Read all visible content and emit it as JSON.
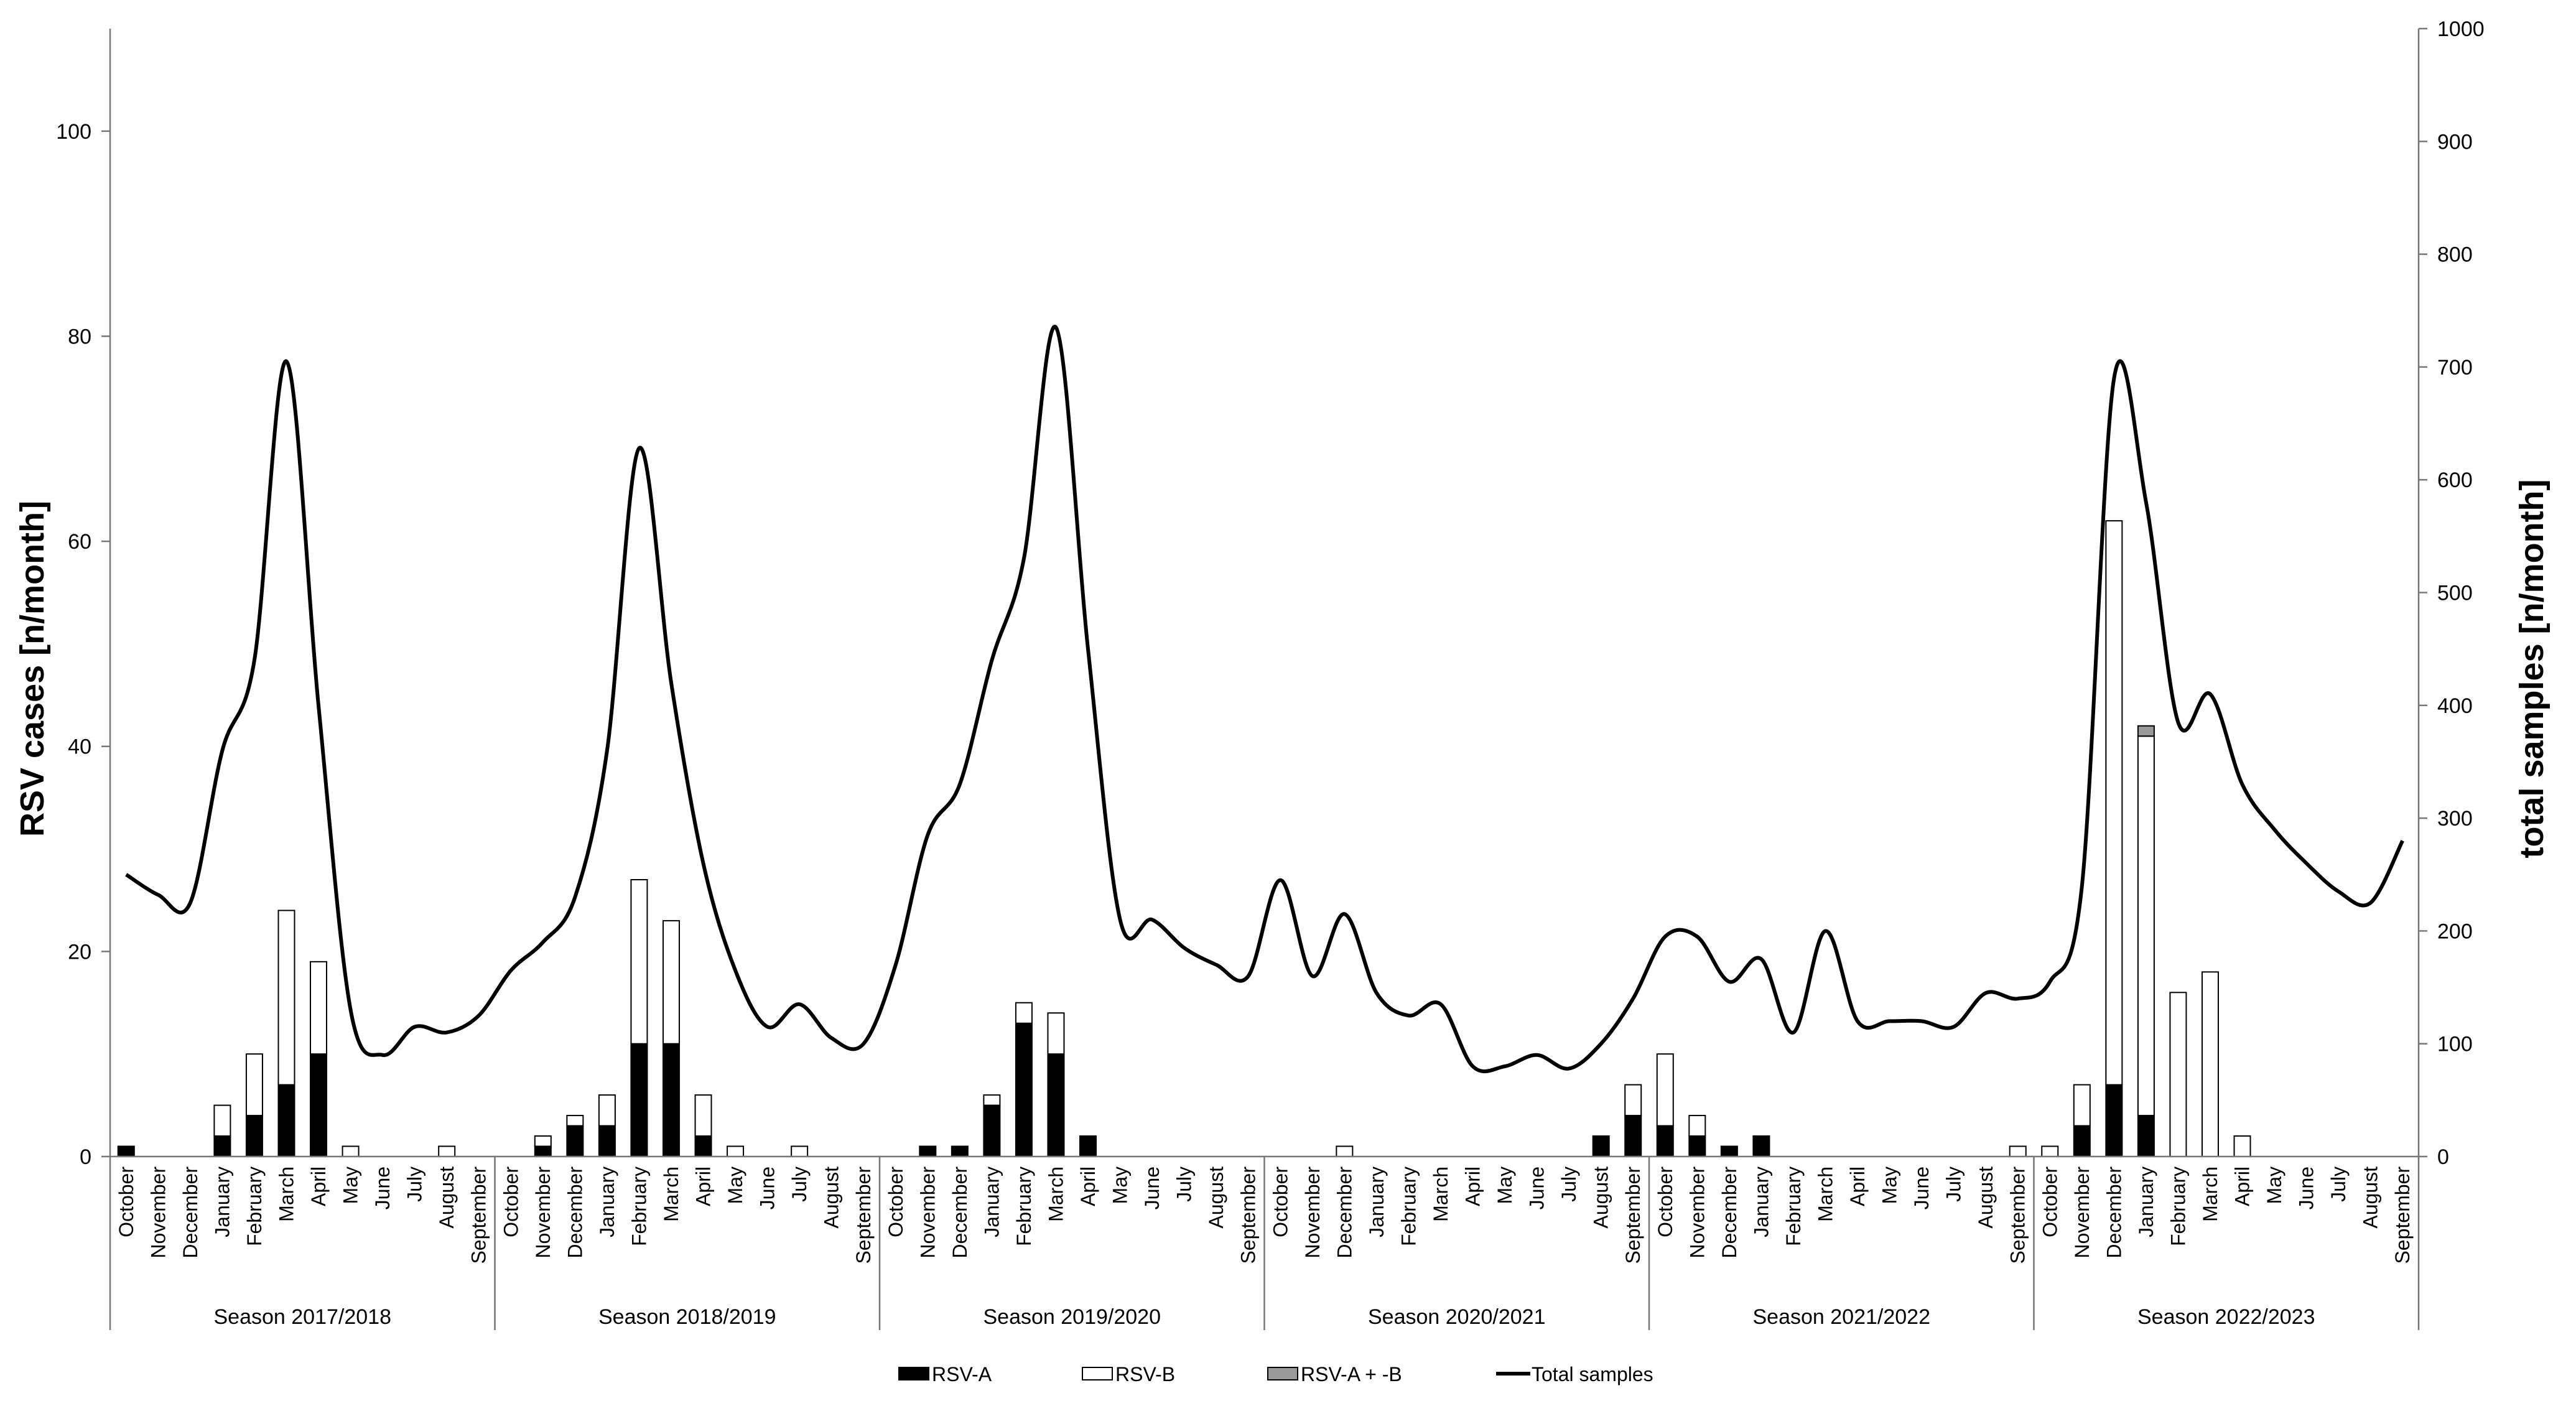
{
  "chart_data": {
    "type": "bar",
    "stacked": true,
    "combo": "bars (left axis) + line (right axis)",
    "ylabel_left": "RSV cases [n/month]",
    "ylabel_right": "total samples [n/month]",
    "ylim_left": [
      0,
      110
    ],
    "ylim_right": [
      0,
      1000
    ],
    "yticks_left": [
      "0",
      "20",
      "40",
      "60",
      "80",
      "100"
    ],
    "yticks_right": [
      "0",
      "100",
      "200",
      "300",
      "400",
      "500",
      "600",
      "700",
      "800",
      "900",
      "1000"
    ],
    "grid": false,
    "legend_position": "bottom-center",
    "months": [
      "October",
      "November",
      "December",
      "January",
      "February",
      "March",
      "April",
      "May",
      "June",
      "July",
      "August",
      "September"
    ],
    "seasons": [
      "Season 2017/2018",
      "Season 2018/2019",
      "Season 2019/2020",
      "Season 2020/2021",
      "Season 2021/2022",
      "Season 2022/2023"
    ],
    "series": [
      {
        "name": "RSV-A",
        "color": "#000000",
        "values": [
          1,
          0,
          0,
          2,
          4,
          7,
          10,
          0,
          0,
          0,
          0,
          0,
          0,
          1,
          3,
          3,
          11,
          11,
          2,
          0,
          0,
          0,
          0,
          0,
          0,
          1,
          1,
          5,
          13,
          10,
          2,
          0,
          0,
          0,
          0,
          0,
          0,
          0,
          0,
          0,
          0,
          0,
          0,
          0,
          0,
          0,
          2,
          4,
          3,
          2,
          1,
          2,
          0,
          0,
          0,
          0,
          0,
          0,
          0,
          0,
          0,
          3,
          7,
          4,
          0,
          0,
          0,
          0,
          0,
          0,
          0,
          0
        ]
      },
      {
        "name": "RSV-B",
        "color": "#ffffff",
        "values": [
          0,
          0,
          0,
          3,
          6,
          17,
          9,
          1,
          0,
          0,
          1,
          0,
          0,
          1,
          1,
          3,
          16,
          12,
          4,
          1,
          0,
          1,
          0,
          0,
          0,
          0,
          0,
          1,
          2,
          4,
          0,
          0,
          0,
          0,
          0,
          0,
          0,
          0,
          1,
          0,
          0,
          0,
          0,
          0,
          0,
          0,
          0,
          3,
          7,
          2,
          0,
          0,
          0,
          0,
          0,
          0,
          0,
          0,
          0,
          1,
          1,
          4,
          55,
          37,
          16,
          18,
          2,
          0,
          0,
          0,
          0,
          0
        ]
      },
      {
        "name": "RSV-A + -B",
        "color": "#999999",
        "values": [
          0,
          0,
          0,
          0,
          0,
          0,
          0,
          0,
          0,
          0,
          0,
          0,
          0,
          0,
          0,
          0,
          0,
          0,
          0,
          0,
          0,
          0,
          0,
          0,
          0,
          0,
          0,
          0,
          0,
          0,
          0,
          0,
          0,
          0,
          0,
          0,
          0,
          0,
          0,
          0,
          0,
          0,
          0,
          0,
          0,
          0,
          0,
          0,
          0,
          0,
          0,
          0,
          0,
          0,
          0,
          0,
          0,
          0,
          0,
          0,
          0,
          0,
          0,
          1,
          0,
          0,
          0,
          0,
          0,
          0,
          0,
          0
        ]
      },
      {
        "name": "Total samples",
        "type": "line",
        "axis": "right",
        "color": "#000000",
        "values": [
          250,
          232,
          225,
          360,
          440,
          705,
          400,
          130,
          90,
          115,
          110,
          125,
          165,
          190,
          230,
          360,
          628,
          420,
          260,
          165,
          115,
          135,
          105,
          100,
          170,
          285,
          330,
          440,
          530,
          735,
          450,
          210,
          210,
          185,
          170,
          160,
          245,
          160,
          215,
          145,
          125,
          135,
          80,
          80,
          90,
          78,
          100,
          140,
          195,
          195,
          155,
          175,
          110,
          200,
          120,
          120,
          120,
          115,
          145,
          140,
          155,
          240,
          690,
          580,
          385,
          410,
          330,
          290,
          260,
          235,
          225,
          280
        ]
      }
    ]
  }
}
